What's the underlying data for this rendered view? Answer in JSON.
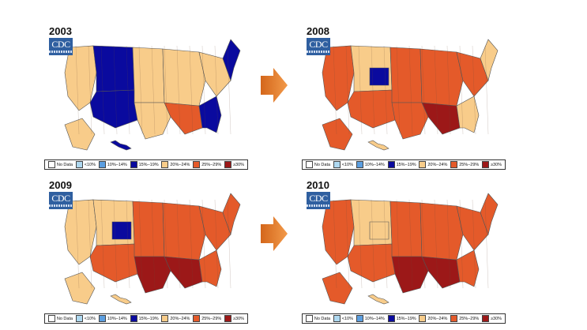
{
  "colors": {
    "no_data": "#ffffff",
    "lt10": "#aed8f0",
    "p10_14": "#5b9ee0",
    "p15_19": "#0a0a9e",
    "p20_24": "#f8cc8a",
    "p25_29": "#e45a2a",
    "ge30": "#9c1818",
    "arrow": "#e57a22"
  },
  "logo_text": "CDC",
  "legend": [
    {
      "key": "no_data",
      "label": "No Data"
    },
    {
      "key": "lt10",
      "label": "<10%"
    },
    {
      "key": "p10_14",
      "label": "10%–14%"
    },
    {
      "key": "p15_19",
      "label": "15%–19%"
    },
    {
      "key": "p20_24",
      "label": "20%–24%"
    },
    {
      "key": "p25_29",
      "label": "25%–29%"
    },
    {
      "key": "ge30",
      "label": "≥30%"
    }
  ],
  "maps": [
    {
      "year": "2003",
      "icon": "usa-choropleth-map",
      "base": "p20_24",
      "regions": {
        "west": "p20_24",
        "mountain": "p15_19",
        "southwest": "p15_19",
        "plains": "p20_24",
        "south": "p20_24",
        "deep_south": "p25_29",
        "midwest": "p20_24",
        "northeast": "p20_24",
        "new_england": "p15_19",
        "florida": "p15_19",
        "alaska": "p20_24",
        "hawaii": "p15_19"
      }
    },
    {
      "year": "2008",
      "icon": "usa-choropleth-map",
      "base": "p25_29",
      "regions": {
        "west": "p25_29",
        "mountain": "p20_24",
        "southwest": "p25_29",
        "plains": "p25_29",
        "south": "p25_29",
        "deep_south": "ge30",
        "midwest": "p25_29",
        "northeast": "p25_29",
        "new_england": "p20_24",
        "florida": "p20_24",
        "alaska": "p25_29",
        "hawaii": "p20_24",
        "colorado": "p15_19"
      }
    },
    {
      "year": "2009",
      "icon": "usa-choropleth-map",
      "base": "p25_29",
      "regions": {
        "west": "p20_24",
        "mountain": "p20_24",
        "southwest": "p25_29",
        "plains": "p25_29",
        "south": "ge30",
        "deep_south": "ge30",
        "midwest": "p25_29",
        "northeast": "p25_29",
        "new_england": "p25_29",
        "florida": "p25_29",
        "alaska": "p20_24",
        "hawaii": "p20_24",
        "colorado": "p15_19"
      }
    },
    {
      "year": "2010",
      "icon": "usa-choropleth-map",
      "base": "p25_29",
      "regions": {
        "west": "p25_29",
        "mountain": "p20_24",
        "southwest": "p25_29",
        "plains": "p25_29",
        "south": "ge30",
        "deep_south": "ge30",
        "midwest": "p25_29",
        "northeast": "p25_29",
        "new_england": "p25_29",
        "florida": "p25_29",
        "alaska": "p25_29",
        "hawaii": "p20_24",
        "colorado": "p20_24"
      }
    }
  ]
}
